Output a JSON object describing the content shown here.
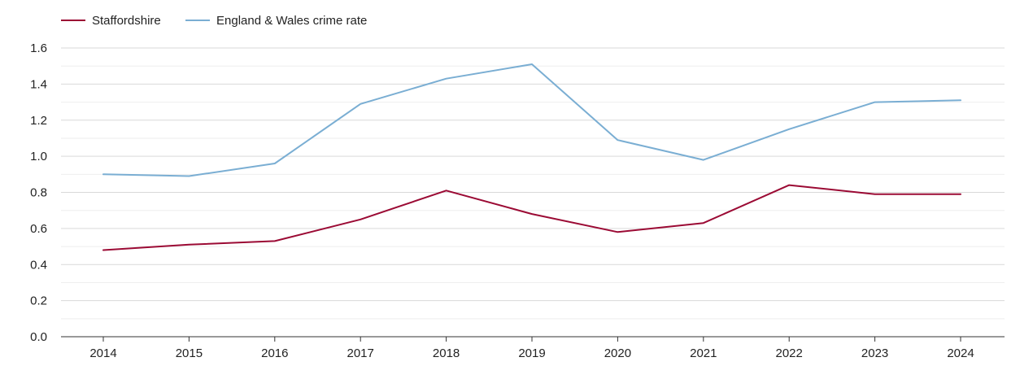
{
  "chart_data": {
    "type": "line",
    "title": "",
    "xlabel": "",
    "ylabel": "",
    "x": [
      "2014",
      "2015",
      "2016",
      "2017",
      "2018",
      "2019",
      "2020",
      "2021",
      "2022",
      "2023",
      "2024"
    ],
    "ylim": [
      0,
      1.6
    ],
    "yticks": [
      "0.0",
      "0.2",
      "0.4",
      "0.6",
      "0.8",
      "1.0",
      "1.2",
      "1.4",
      "1.6"
    ],
    "grid": true,
    "legend_position": "top-left",
    "series": [
      {
        "name": "Staffordshire",
        "color": "#9b0a34",
        "values": [
          0.48,
          0.51,
          0.53,
          0.65,
          0.81,
          0.68,
          0.58,
          0.63,
          0.84,
          0.79,
          0.79
        ]
      },
      {
        "name": "England & Wales crime rate",
        "color": "#7aaed3",
        "values": [
          0.9,
          0.89,
          0.96,
          1.29,
          1.43,
          1.51,
          1.09,
          0.98,
          1.15,
          1.3,
          1.31
        ]
      }
    ]
  }
}
